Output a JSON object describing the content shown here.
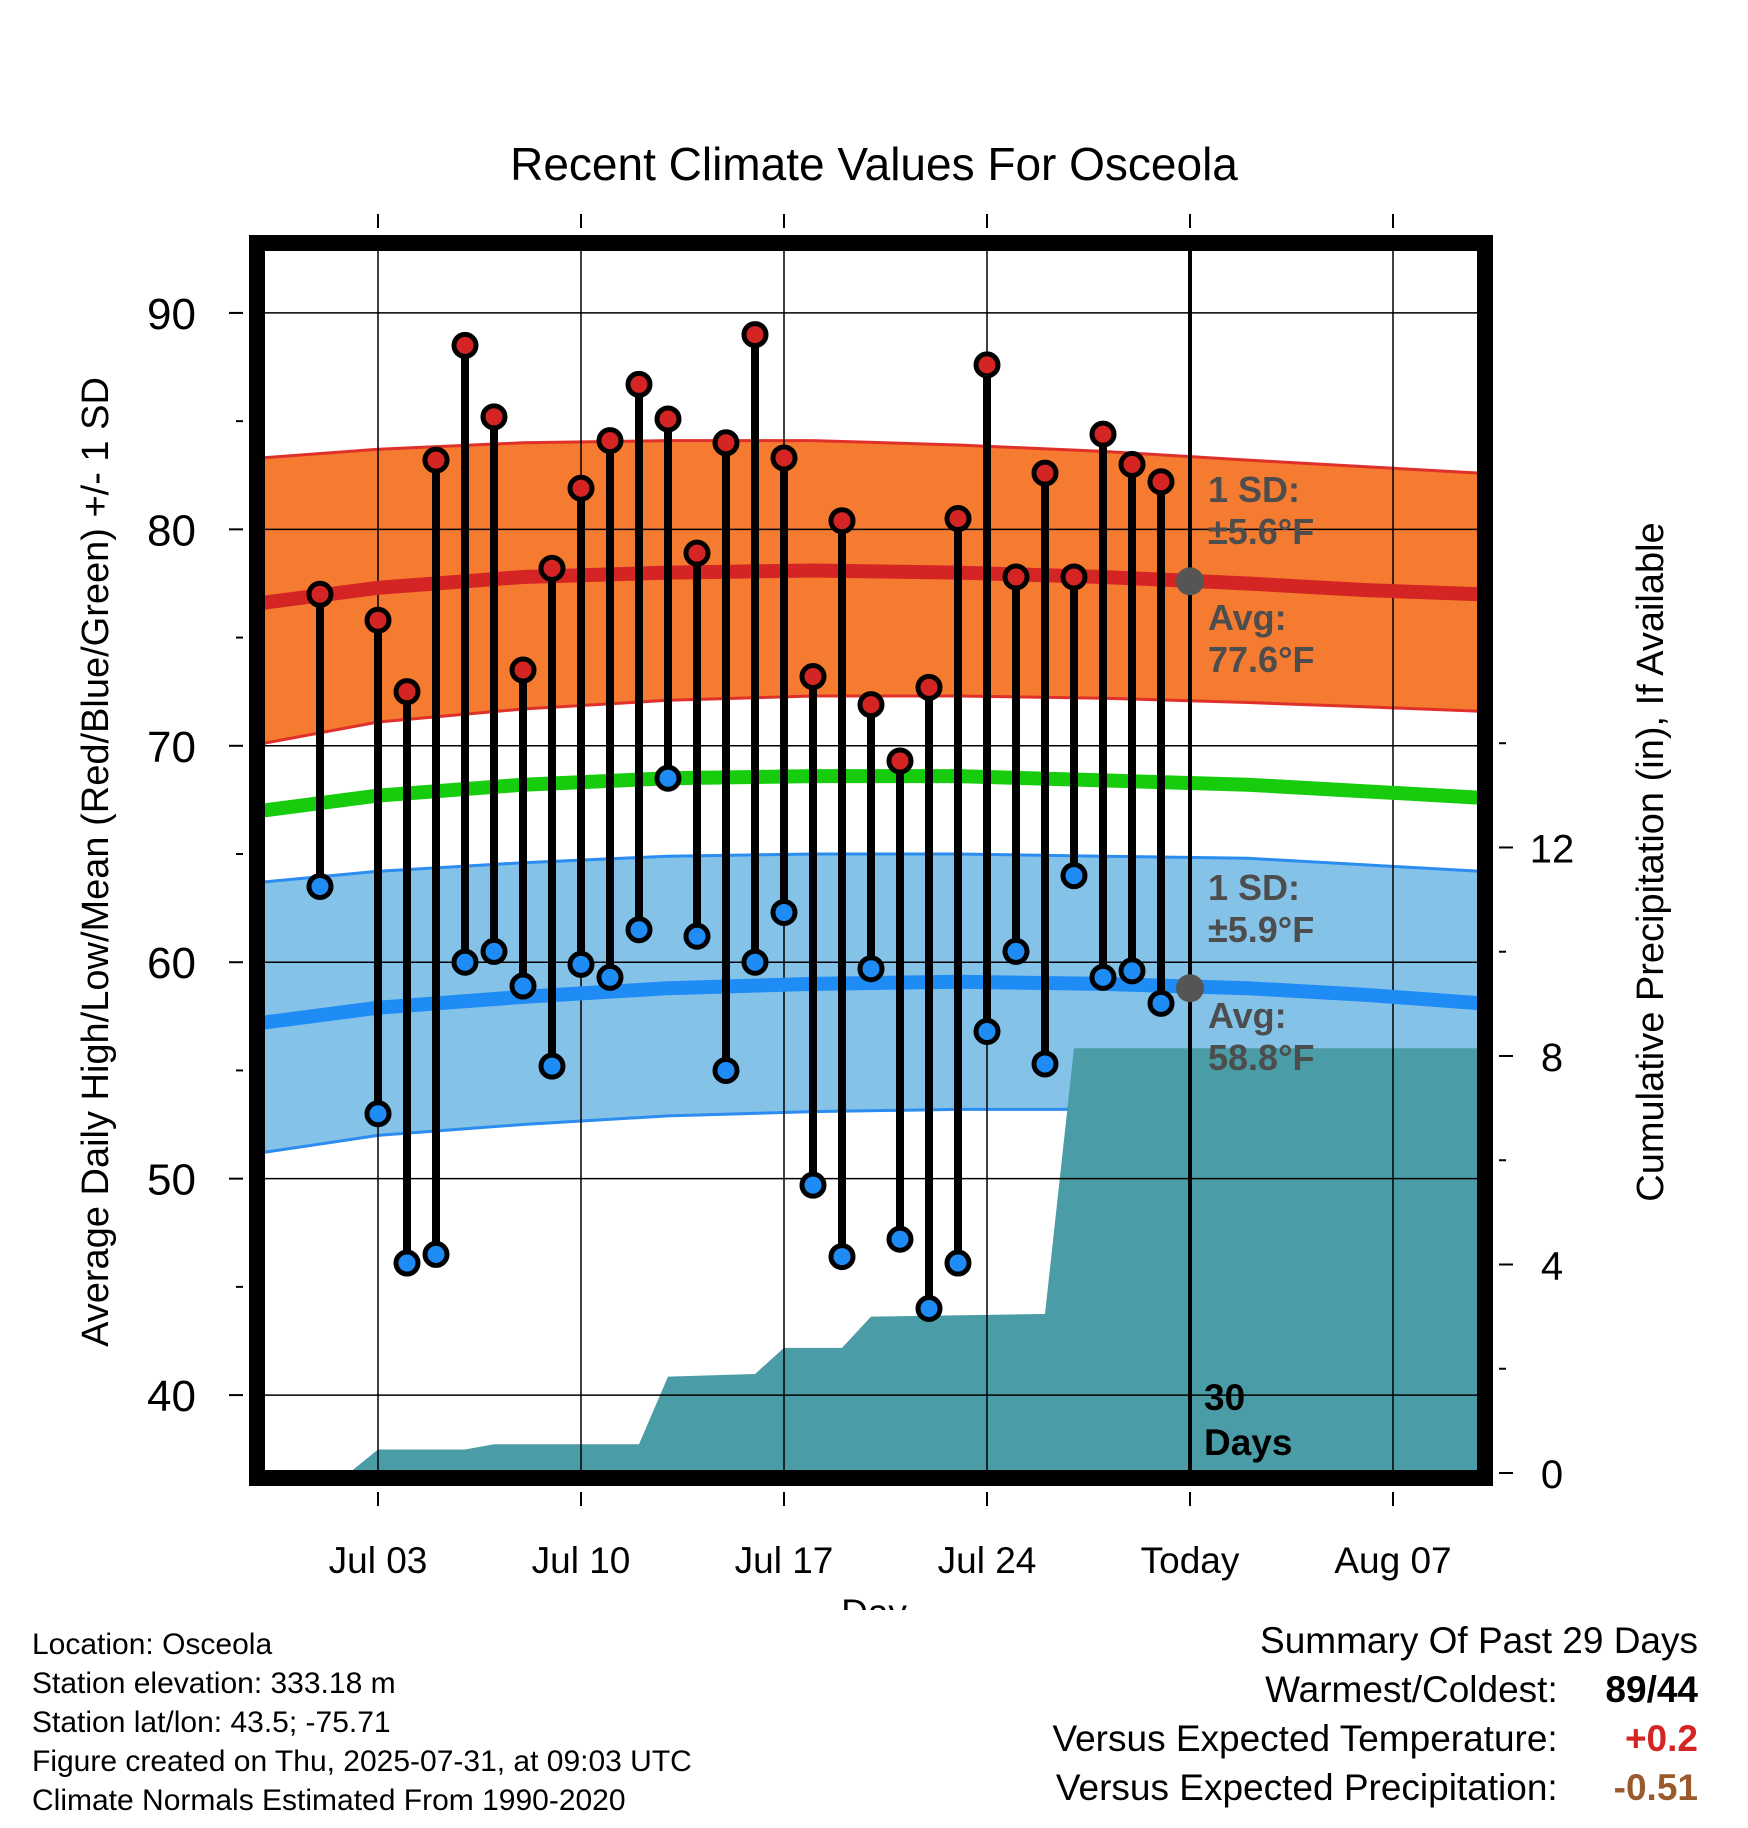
{
  "chart_data": {
    "type": "line",
    "title": "Recent Climate Values For Osceola",
    "xlabel": "Day",
    "ylabel": "Average Daily High/Low/Mean (Red/Blue/Green) +/- 1 SD",
    "y2label": "Cumulative Precipitation (in), If Available",
    "ylim": [
      36.4,
      93
    ],
    "y2lim": [
      0,
      23.5
    ],
    "xlim": [
      "2025-06-29",
      "2025-08-10"
    ],
    "yticks": [
      40,
      50,
      60,
      70,
      80,
      90
    ],
    "y2ticks": [
      0,
      4,
      8,
      12
    ],
    "xticks": [
      {
        "date": "2025-07-03",
        "label": "Jul 03"
      },
      {
        "date": "2025-07-10",
        "label": "Jul 10"
      },
      {
        "date": "2025-07-17",
        "label": "Jul 17"
      },
      {
        "date": "2025-07-24",
        "label": "Jul 24"
      },
      {
        "date": "2025-07-31",
        "label": "Today"
      },
      {
        "date": "2025-08-07",
        "label": "Aug 07"
      }
    ],
    "grid": true,
    "dates": [
      "2025-07-01",
      "2025-07-03",
      "2025-07-04",
      "2025-07-05",
      "2025-07-06",
      "2025-07-07",
      "2025-07-08",
      "2025-07-09",
      "2025-07-10",
      "2025-07-11",
      "2025-07-12",
      "2025-07-13",
      "2025-07-14",
      "2025-07-15",
      "2025-07-16",
      "2025-07-17",
      "2025-07-18",
      "2025-07-19",
      "2025-07-20",
      "2025-07-21",
      "2025-07-22",
      "2025-07-23",
      "2025-07-24",
      "2025-07-25",
      "2025-07-26",
      "2025-07-27",
      "2025-07-28",
      "2025-07-29",
      "2025-07-30"
    ],
    "high": [
      77,
      75.8,
      72.5,
      83.2,
      88.5,
      85.2,
      73.5,
      78.2,
      81.9,
      84.1,
      86.7,
      85.1,
      78.9,
      84,
      89,
      83.3,
      73.2,
      80.4,
      71.9,
      69.3,
      72.7,
      80.5,
      87.6,
      77.8,
      82.6,
      77.8,
      84.4,
      83,
      82.2
    ],
    "low": [
      63.5,
      53,
      46.1,
      46.5,
      60,
      60.5,
      58.9,
      55.2,
      59.9,
      59.3,
      61.5,
      68.5,
      61.2,
      55,
      60,
      62.3,
      49.7,
      46.4,
      59.7,
      47.2,
      44,
      46.1,
      56.8,
      60.5,
      55.3,
      64,
      59.3,
      59.6,
      58.1
    ],
    "normals": {
      "dates": [
        "2025-06-29",
        "2025-07-03",
        "2025-07-08",
        "2025-07-13",
        "2025-07-18",
        "2025-07-23",
        "2025-07-28",
        "2025-08-02",
        "2025-08-06",
        "2025-08-10"
      ],
      "high_avg": [
        76.6,
        77.3,
        77.8,
        78.0,
        78.1,
        78.0,
        77.8,
        77.5,
        77.2,
        77.0
      ],
      "high_upper": [
        83.3,
        83.7,
        84.0,
        84.1,
        84.1,
        83.9,
        83.6,
        83.2,
        82.9,
        82.6
      ],
      "high_lower": [
        70.1,
        71.1,
        71.7,
        72.1,
        72.3,
        72.3,
        72.2,
        72.0,
        71.8,
        71.6
      ],
      "mean_avg": [
        67.0,
        67.7,
        68.2,
        68.5,
        68.6,
        68.6,
        68.4,
        68.2,
        67.9,
        67.6
      ],
      "low_avg": [
        57.2,
        57.9,
        58.4,
        58.8,
        59.0,
        59.1,
        59.0,
        58.8,
        58.5,
        58.1
      ],
      "low_upper": [
        63.7,
        64.2,
        64.6,
        64.9,
        65.0,
        65.0,
        64.9,
        64.8,
        64.5,
        64.2
      ],
      "low_lower": [
        51.2,
        52.0,
        52.5,
        52.9,
        53.1,
        53.2,
        53.2,
        53.1,
        52.8,
        52.4
      ]
    },
    "precip": {
      "dates": [
        "2025-06-29",
        "2025-07-02",
        "2025-07-03",
        "2025-07-06",
        "2025-07-07",
        "2025-07-12",
        "2025-07-13",
        "2025-07-16",
        "2025-07-17",
        "2025-07-19",
        "2025-07-20",
        "2025-07-26",
        "2025-07-27",
        "2025-08-10"
      ],
      "values": [
        0,
        0,
        0.45,
        0.45,
        0.55,
        0.55,
        1.85,
        1.9,
        2.4,
        2.4,
        3.0,
        3.05,
        8.15,
        8.15
      ]
    },
    "annotations": {
      "high_sd": "1 SD:",
      "high_sd_val": "±5.6°F",
      "high_avg_label": "Avg:",
      "high_avg_val": "77.6°F",
      "low_sd": "1 SD:",
      "low_sd_val": "±5.9°F",
      "low_avg_label": "Avg:",
      "low_avg_val": "58.8°F",
      "today_high_avg": 77.6,
      "today_low_avg": 58.8,
      "days_label_1": "30",
      "days_label_2": "Days"
    },
    "colors": {
      "high_band": "#f47b2f",
      "high_band_edge": "#e0302a",
      "high_line": "#d42524",
      "low_band": "#84c2e8",
      "low_band_edge": "#2b8df0",
      "low_line": "#1f8cf5",
      "mean_line": "#17cc0c",
      "precip": "#4a9ca6",
      "high_dot": "#d42524",
      "low_dot": "#1f8cf5",
      "annotation": "#4d4d4d"
    }
  },
  "footer": {
    "location": "Location: Osceola",
    "elevation": "Station elevation: 333.18 m",
    "latlon": "Station lat/lon: 43.5; -75.71",
    "created": "Figure created on Thu, 2025-07-31, at 09:03 UTC",
    "normals": "Climate Normals Estimated From 1990-2020"
  },
  "summary": {
    "title": "Summary Of Past 29 Days",
    "warmest_coldest_label": "Warmest/Coldest:",
    "warmest_value": "89",
    "coldest_value": "44",
    "temp_label": "Versus Expected Temperature:",
    "temp_value": "+0.2",
    "temp_color": "#d42524",
    "precip_label": "Versus Expected Precipitation:",
    "precip_value": "-0.51",
    "precip_color": "#9a5a2c"
  }
}
